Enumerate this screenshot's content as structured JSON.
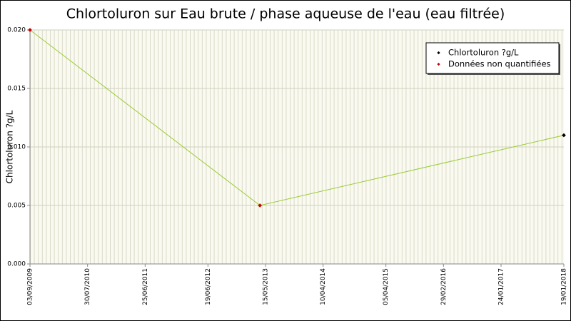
{
  "chart_data": {
    "type": "line",
    "title": "Chlortoluron sur Eau brute / phase aqueuse de l'eau (eau filtrée)",
    "y_label": "Chlortoluron ?g/L",
    "x": [
      "2009-09-03",
      "2013-04-13",
      "2018-01-19"
    ],
    "series": [
      {
        "name": "Chlortoluron ?g/L",
        "color": "#000000",
        "line_color": "#99cc33",
        "values": [
          0.02,
          0.005,
          0.011
        ],
        "quantified": [
          false,
          false,
          true
        ]
      }
    ],
    "non_quantified": {
      "name": "Données non quantifiées",
      "color": "#cc0000"
    },
    "xlim": [
      "2009-09-03",
      "2018-01-19"
    ],
    "xticks": [
      {
        "value": "2009-09-03",
        "label": "03/09/2009"
      },
      {
        "value": "2010-07-30",
        "label": "30/07/2010"
      },
      {
        "value": "2011-06-25",
        "label": "25/06/2011"
      },
      {
        "value": "2012-06-19",
        "label": "19/06/2012"
      },
      {
        "value": "2013-05-15",
        "label": "15/05/2013"
      },
      {
        "value": "2014-04-10",
        "label": "10/04/2014"
      },
      {
        "value": "2015-04-05",
        "label": "05/04/2015"
      },
      {
        "value": "2016-02-29",
        "label": "29/02/2016"
      },
      {
        "value": "2017-01-24",
        "label": "24/01/2017"
      },
      {
        "value": "2018-01-19",
        "label": "19/01/2018"
      }
    ],
    "ylim": [
      0,
      0.02
    ],
    "yticks": [
      {
        "value": 0,
        "label": "0.000"
      },
      0.005,
      {
        "value": 0.01,
        "label": "0.010"
      },
      0.015,
      {
        "value": 0.02,
        "label": "0.020"
      }
    ],
    "grid": true,
    "legend": "upper right"
  }
}
